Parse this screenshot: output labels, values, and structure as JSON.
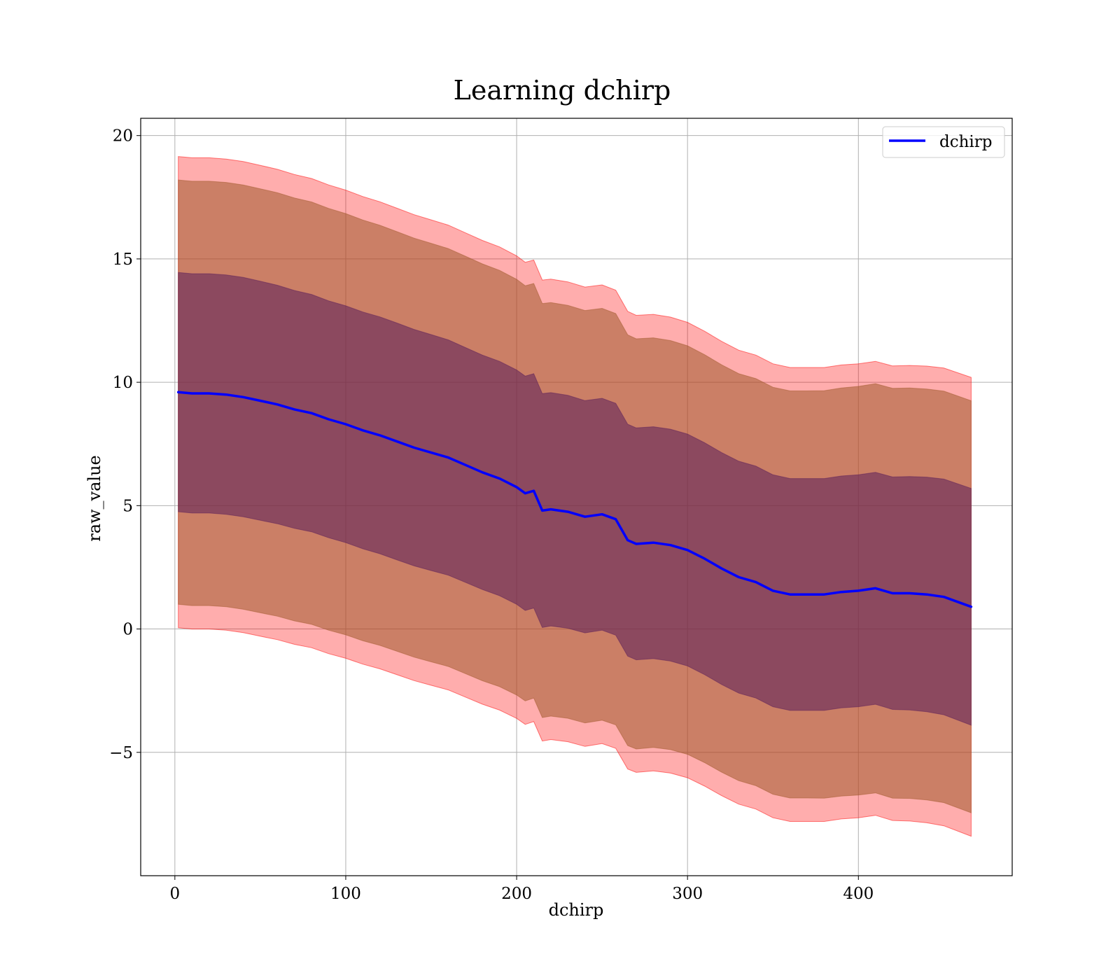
{
  "chart_data": {
    "type": "line",
    "title": "Learning dchirp",
    "xlabel": "dchirp",
    "ylabel": "raw_value",
    "xlim": [
      -20,
      490
    ],
    "ylim": [
      -10,
      20.7
    ],
    "xticks": [
      0,
      100,
      200,
      300,
      400
    ],
    "yticks": [
      -5,
      0,
      5,
      10,
      15,
      20
    ],
    "ytick_labels": [
      "−5",
      "0",
      "5",
      "10",
      "15",
      "20"
    ],
    "grid": true,
    "legend": {
      "position": "top-right",
      "entries": [
        "dchirp"
      ]
    },
    "colors": {
      "line": "#0000ff",
      "band_outer": "#ff0000",
      "band_middle": "#a05a2c",
      "band_inner": "#5a1e5a"
    },
    "bands": [
      {
        "level": "outer",
        "half_width": [
          9.55,
          9.55,
          9.5,
          9.45,
          9.4,
          9.35,
          9.3,
          9.25,
          9.2,
          9.2,
          9.2,
          9.3
        ]
      },
      {
        "level": "middle",
        "half_width": [
          8.6,
          8.6,
          8.55,
          8.5,
          8.45,
          8.4,
          8.35,
          8.3,
          8.25,
          8.25,
          8.3,
          8.35
        ]
      },
      {
        "level": "inner",
        "half_width": [
          4.85,
          4.85,
          4.8,
          4.8,
          4.75,
          4.75,
          4.7,
          4.7,
          4.7,
          4.7,
          4.7,
          4.8
        ]
      }
    ],
    "series": [
      {
        "name": "dchirp",
        "x": [
          2,
          10,
          20,
          30,
          40,
          50,
          60,
          70,
          80,
          90,
          100,
          110,
          120,
          130,
          140,
          150,
          160,
          170,
          180,
          190,
          200,
          205,
          210,
          215,
          220,
          230,
          240,
          250,
          258,
          265,
          270,
          280,
          290,
          300,
          310,
          320,
          330,
          340,
          350,
          360,
          370,
          380,
          390,
          400,
          410,
          420,
          430,
          440,
          450,
          466
        ],
        "y": [
          9.6,
          9.55,
          9.55,
          9.5,
          9.4,
          9.25,
          9.1,
          8.9,
          8.75,
          8.5,
          8.3,
          8.05,
          7.85,
          7.6,
          7.35,
          7.15,
          6.95,
          6.65,
          6.35,
          6.1,
          5.75,
          5.5,
          5.6,
          4.8,
          4.85,
          4.75,
          4.55,
          4.65,
          4.45,
          3.6,
          3.45,
          3.5,
          3.4,
          3.2,
          2.85,
          2.45,
          2.1,
          1.9,
          1.55,
          1.4,
          1.4,
          1.4,
          1.5,
          1.55,
          1.65,
          1.45,
          1.45,
          1.4,
          1.3,
          0.9
        ]
      }
    ]
  }
}
